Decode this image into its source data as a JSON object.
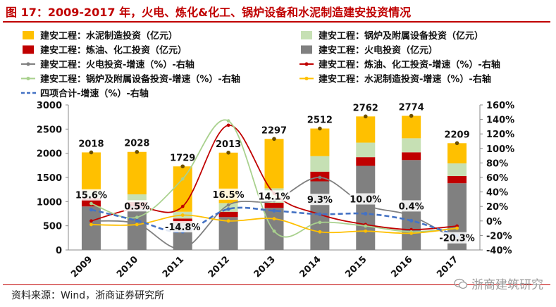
{
  "header": {
    "title": "图 17：2009-2017 年，火电、炼化&化工、锅炉设备和水泥制造建安投资情况"
  },
  "footer": {
    "source": "资料来源：Wind，浙商证券研究所",
    "watermark": "浙商建筑研究"
  },
  "colors": {
    "cement": "#ffc000",
    "boiler": "#c6e0b4",
    "refining": "#c00000",
    "power": "#808080",
    "total_line": "#4472c4"
  },
  "chart_data": {
    "type": "bar",
    "stacked": true,
    "categories": [
      "2009",
      "2010",
      "2011",
      "2012",
      "2013",
      "2014",
      "2015",
      "2016",
      "2017"
    ],
    "ylim_left": [
      0,
      3000
    ],
    "yticks_left": [
      "0",
      "500",
      "1000",
      "1500",
      "2000",
      "2500",
      "3000"
    ],
    "ylim_right": [
      -40,
      160
    ],
    "yticks_right": [
      "-40%",
      "-20%",
      "0%",
      "20%",
      "40%",
      "60%",
      "80%",
      "100%",
      "120%",
      "140%",
      "160%"
    ],
    "series": [
      {
        "name": "建安工程：火电投资（亿元）",
        "kind": "bar",
        "color_key": "power",
        "values": [
          900,
          900,
          560,
          680,
          870,
          1420,
          1740,
          1860,
          1380
        ]
      },
      {
        "name": "建安工程：炼油、化工投资（亿元）",
        "kind": "bar",
        "color_key": "refining",
        "values": [
          170,
          90,
          90,
          110,
          105,
          200,
          180,
          160,
          150
        ]
      },
      {
        "name": "建安工程：锅炉及附属设备投资（亿元）",
        "kind": "bar",
        "color_key": "boiler",
        "values": [
          160,
          160,
          140,
          180,
          300,
          320,
          300,
          290,
          260
        ]
      },
      {
        "name": "建安工程：水泥制造投资（亿元）",
        "kind": "bar",
        "color_key": "cement",
        "values": [
          788,
          878,
          939,
          1043,
          1022,
          572,
          542,
          464,
          419
        ]
      },
      {
        "name": "建安工程：火电投资-增速（%）-右轴",
        "kind": "line",
        "axis": "right",
        "color": "#808080",
        "values": [
          0,
          -4,
          -38,
          22,
          28,
          60,
          22,
          7,
          -27
        ]
      },
      {
        "name": "建安工程：炼油、化工投资-增速（%）-右轴",
        "kind": "line",
        "axis": "right",
        "color": "#c00000",
        "values": [
          0,
          18,
          20,
          132,
          38,
          9,
          -5,
          -12,
          -7
        ]
      },
      {
        "name": "建安工程：锅炉及附属设备投资-增速（%）-右轴",
        "kind": "line",
        "axis": "right",
        "color": "#a9d18e",
        "values": [
          24,
          5,
          58,
          138,
          -14,
          -2,
          -7,
          -15,
          -10
        ]
      },
      {
        "name": "建安工程：水泥制造投资-增速（%）-右轴",
        "kind": "line",
        "axis": "right",
        "color": "#ffc000",
        "values": [
          -5,
          -5,
          8,
          0,
          3,
          -15,
          -14,
          -17,
          -10
        ]
      },
      {
        "name": "四项合计-增速（%）-右轴",
        "kind": "line",
        "axis": "right",
        "color": "#4472c4",
        "dashed": true,
        "values": [
          15.6,
          0.5,
          -14.8,
          16.5,
          14.1,
          9.3,
          10.0,
          0.4,
          -20.3
        ]
      }
    ],
    "totals": [
      2018,
      2028,
      1729,
      2013,
      2297,
      2512,
      2762,
      2774,
      2209
    ],
    "totals_labels": [
      "2018",
      "2028",
      "1729",
      "2013",
      "2297",
      "2512",
      "2762",
      "2774",
      "2209"
    ],
    "growth_labels": [
      "15.6%",
      "0.5%",
      "-14.8%",
      "16.5%",
      "14.1%",
      "9.3%",
      "10.0%",
      "0.4%",
      "-20.3%"
    ],
    "legend": [
      {
        "label": "建安工程：水泥制造投资（亿元）",
        "kind": "box",
        "color": "#ffc000"
      },
      {
        "label": "建安工程：锅炉及附属设备投资（亿元）",
        "kind": "box",
        "color": "#c6e0b4"
      },
      {
        "label": "建安工程：炼油、化工投资（亿元）",
        "kind": "box",
        "color": "#c00000"
      },
      {
        "label": "建安工程：火电投资（亿元）",
        "kind": "box",
        "color": "#808080"
      },
      {
        "label": "建安工程：火电投资-增速（%）-右轴",
        "kind": "line",
        "color": "#808080"
      },
      {
        "label": "建安工程：炼油、化工投资-增速（%）-右轴",
        "kind": "line",
        "color": "#c00000"
      },
      {
        "label": "建安工程：锅炉及附属设备投资-增速（%）-右轴",
        "kind": "line",
        "color": "#a9d18e"
      },
      {
        "label": "建安工程：水泥制造投资-增速（%）-右轴",
        "kind": "line",
        "color": "#ffc000"
      },
      {
        "label": "四项合计-增速（%）-右轴",
        "kind": "dash",
        "color": "#4472c4"
      }
    ]
  }
}
